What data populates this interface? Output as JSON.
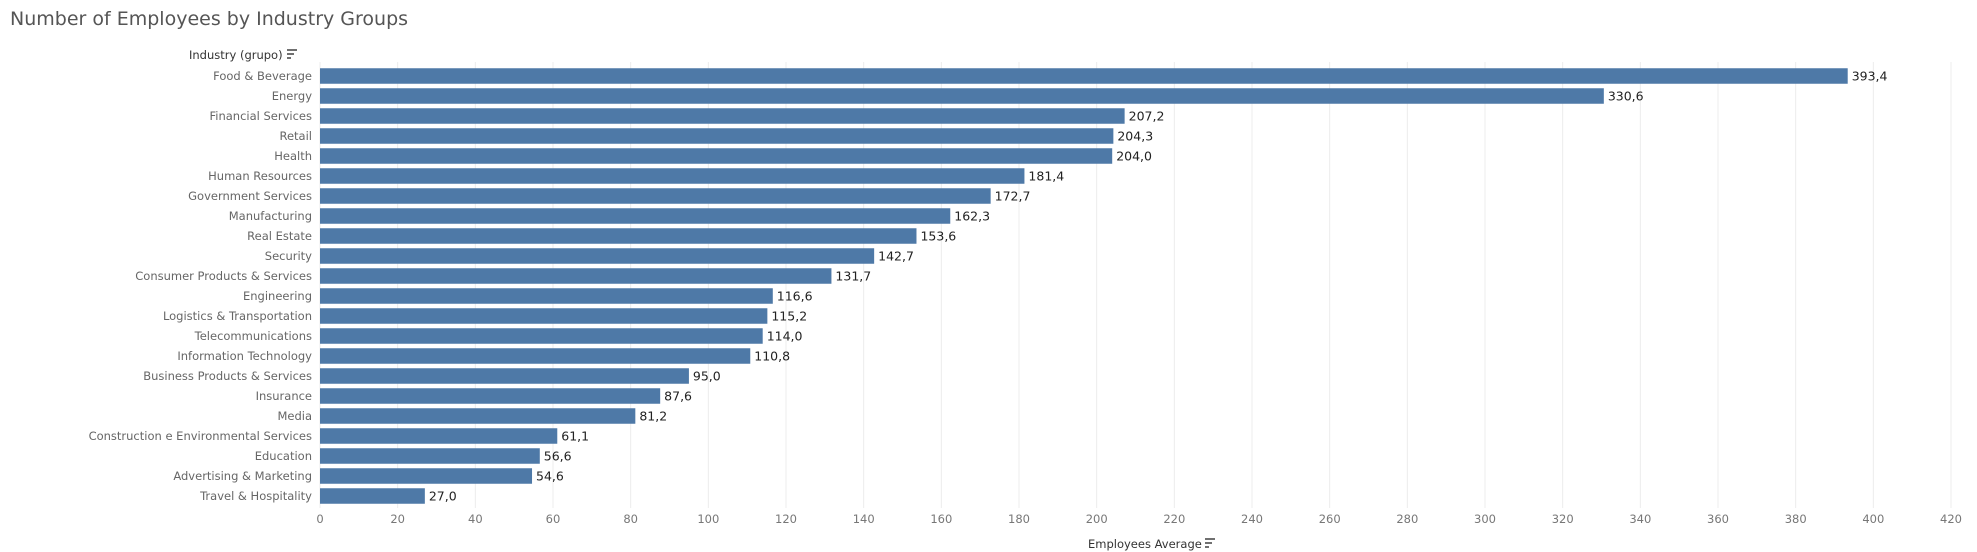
{
  "chart_data": {
    "type": "bar",
    "orientation": "horizontal",
    "title": "Number of Employees by Industry Groups",
    "ylabel": "Industry (grupo)",
    "xlabel": "Employees Average",
    "xlim": [
      0,
      420
    ],
    "xticks": [
      0,
      20,
      40,
      60,
      80,
      100,
      120,
      140,
      160,
      180,
      200,
      220,
      240,
      260,
      280,
      300,
      320,
      340,
      360,
      380,
      400,
      420
    ],
    "grid": true,
    "bar_color": "#4e79a7",
    "categories": [
      "Food & Beverage",
      "Energy",
      "Financial Services",
      "Retail",
      "Health",
      "Human Resources",
      "Government Services",
      "Manufacturing",
      "Real Estate",
      "Security",
      "Consumer Products & Services",
      "Engineering",
      "Logistics & Transportation",
      "Telecommunications",
      "Information Technology",
      "Business Products & Services",
      "Insurance",
      "Media",
      "Construction e Environmental Services",
      "Education",
      "Advertising & Marketing",
      "Travel & Hospitality"
    ],
    "values": [
      393.4,
      330.6,
      207.2,
      204.3,
      204.0,
      181.4,
      172.7,
      162.3,
      153.6,
      142.7,
      131.7,
      116.6,
      115.2,
      114.0,
      110.8,
      95.0,
      87.6,
      81.2,
      61.1,
      56.6,
      54.6,
      27.0
    ],
    "value_labels": [
      "393,4",
      "330,6",
      "207,2",
      "204,3",
      "204,0",
      "181,4",
      "172,7",
      "162,3",
      "153,6",
      "142,7",
      "131,7",
      "116,6",
      "115,2",
      "114,0",
      "110,8",
      "95,0",
      "87,6",
      "81,2",
      "61,1",
      "56,6",
      "54,6",
      "27,0"
    ]
  }
}
